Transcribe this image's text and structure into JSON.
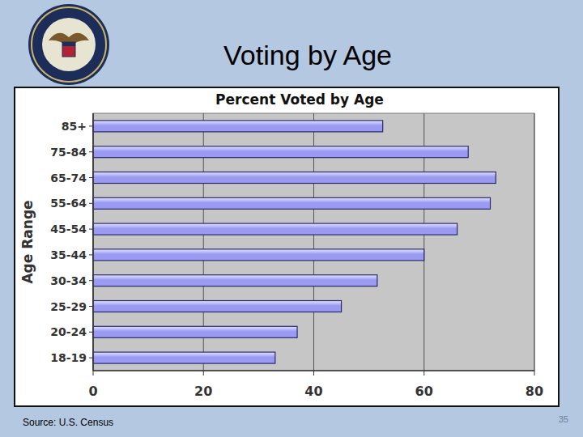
{
  "slide": {
    "title": "Voting by Age",
    "source": "Source: U.S. Census",
    "page_number": "35"
  },
  "chart_data": {
    "type": "bar",
    "orientation": "horizontal",
    "title": "Percent Voted by Age",
    "y_label": "Age Range",
    "categories": [
      "85+",
      "75-84",
      "65-74",
      "55-64",
      "45-54",
      "35-44",
      "30-34",
      "25-29",
      "20-24",
      "18-19"
    ],
    "values": [
      52.5,
      68,
      73,
      72,
      66,
      60,
      51.5,
      45,
      37,
      33
    ],
    "color": "#9a9af2",
    "xlim": [
      0,
      80
    ],
    "xticks": [
      0,
      20,
      40,
      60,
      80
    ],
    "grid": true
  }
}
